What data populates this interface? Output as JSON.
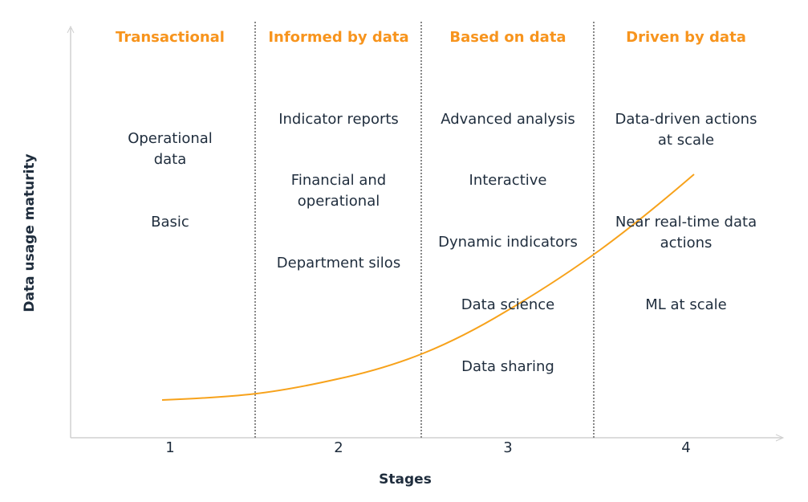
{
  "y_axis_label": "Data usage maturity",
  "x_axis_label": "Stages",
  "stages": [
    {
      "number": "1",
      "title": "Transactional",
      "items": [
        {
          "lines": [
            "Operational",
            "data"
          ]
        },
        {
          "lines": [
            "Basic"
          ]
        }
      ]
    },
    {
      "number": "2",
      "title": "Informed by data",
      "items": [
        {
          "lines": [
            "Indicator reports"
          ]
        },
        {
          "lines": [
            "Financial and",
            "operational"
          ]
        },
        {
          "lines": [
            "Department silos"
          ]
        }
      ]
    },
    {
      "number": "3",
      "title": "Based on data",
      "items": [
        {
          "lines": [
            "Advanced analysis"
          ]
        },
        {
          "lines": [
            "Interactive"
          ]
        },
        {
          "lines": [
            "Dynamic indicators"
          ]
        },
        {
          "lines": [
            "Data science"
          ]
        },
        {
          "lines": [
            "Data sharing"
          ]
        }
      ]
    },
    {
      "number": "4",
      "title": "Driven by data",
      "items": [
        {
          "lines": [
            "Data-driven actions",
            "at scale"
          ]
        },
        {
          "lines": [
            "Near real-time data",
            "actions"
          ]
        },
        {
          "lines": [
            "ML at scale"
          ]
        }
      ]
    }
  ]
}
